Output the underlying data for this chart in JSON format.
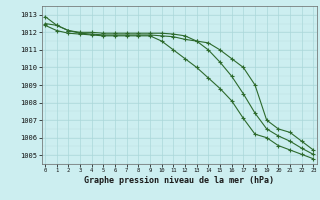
{
  "xlabel": "Graphe pression niveau de la mer (hPa)",
  "background_color": "#cceef0",
  "grid_color_major": "#aad8da",
  "grid_color_minor": "#bbdfe1",
  "line_color": "#2d6a2d",
  "hours": [
    0,
    1,
    2,
    3,
    4,
    5,
    6,
    7,
    8,
    9,
    10,
    11,
    12,
    13,
    14,
    15,
    16,
    17,
    18,
    19,
    20,
    21,
    22,
    23
  ],
  "line1": [
    1012.5,
    1012.4,
    1012.1,
    1012.0,
    1012.0,
    1011.95,
    1011.95,
    1011.95,
    1011.95,
    1011.95,
    1011.95,
    1011.9,
    1011.8,
    1011.5,
    1011.0,
    1010.3,
    1009.5,
    1008.5,
    1007.4,
    1006.5,
    1006.1,
    1005.8,
    1005.4,
    1005.05
  ],
  "line2": [
    1012.4,
    1012.1,
    1011.95,
    1011.9,
    1011.85,
    1011.8,
    1011.8,
    1011.8,
    1011.8,
    1011.8,
    1011.5,
    1011.0,
    1010.5,
    1010.0,
    1009.4,
    1008.8,
    1008.1,
    1007.1,
    1006.2,
    1006.0,
    1005.55,
    1005.3,
    1005.05,
    1004.8
  ],
  "line3": [
    1012.9,
    1012.4,
    1012.1,
    1011.95,
    1011.9,
    1011.85,
    1011.85,
    1011.85,
    1011.85,
    1011.85,
    1011.8,
    1011.75,
    1011.6,
    1011.5,
    1011.4,
    1011.0,
    1010.5,
    1010.0,
    1009.0,
    1007.0,
    1006.5,
    1006.3,
    1005.8,
    1005.3
  ],
  "ylim_min": 1004.5,
  "ylim_max": 1013.5,
  "yticks": [
    1005,
    1006,
    1007,
    1008,
    1009,
    1010,
    1011,
    1012,
    1013
  ]
}
